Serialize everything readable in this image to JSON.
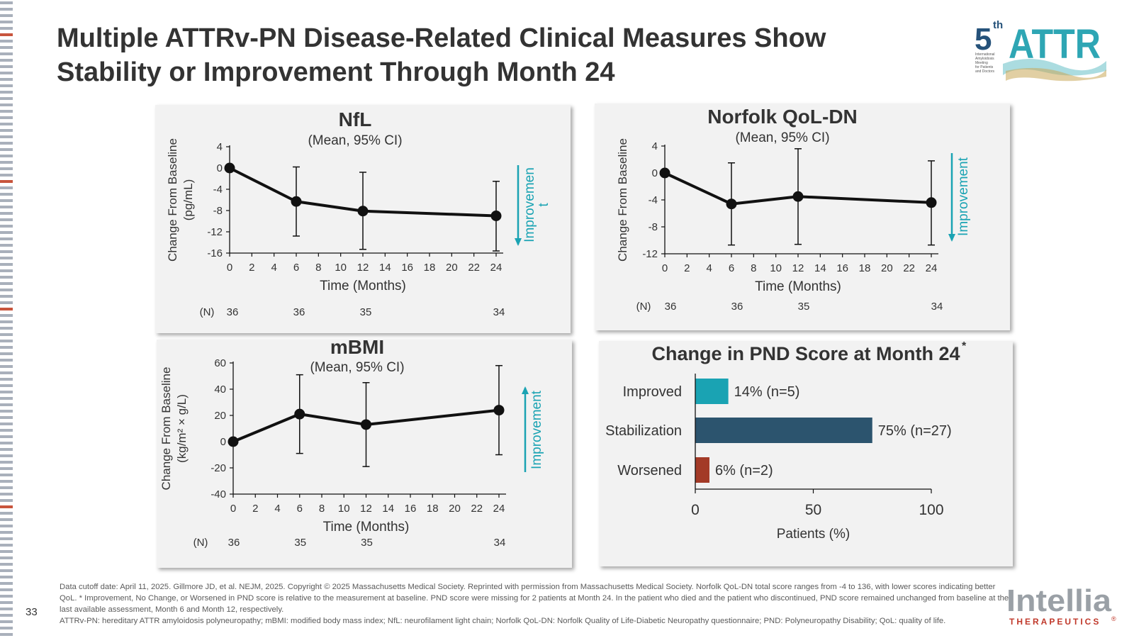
{
  "slide": {
    "title": "Multiple ATTRv-PN Disease-Related Clinical Measures Show Stability or Improvement Through Month 24",
    "page_number": "33"
  },
  "logo_attr": {
    "edition": "5",
    "edition_suffix": "th",
    "name": "ATTR",
    "lines": [
      "International",
      "Amyloidosis",
      "Meeting",
      "for Patients",
      "and Doctors"
    ],
    "colors": {
      "navy": "#25527a",
      "teal": "#2ea6b4"
    }
  },
  "logo_intellia": {
    "name": "Intellia",
    "tagline": "THERAPEUTICS",
    "mark": "®",
    "colors": {
      "gray": "#9aa0a6",
      "red": "#c0392b"
    }
  },
  "footnote": {
    "line1": "Data cutoff date: April 11, 2025. Gillmore JD, et al. NEJM, 2025. Copyright © 2025 Massachusetts Medical Society. Reprinted with permission from Massachusetts Medical Society. Norfolk QoL-DN total score ranges from -4 to 136, with lower scores indicating better QoL. * Improvement, No Change, or Worsened in PND score is relative to the measurement at baseline. PND score were missing for 2 patients at Month 24. In the patient who died and the patient who discontinued, PND score remained unchanged from baseline at the last available assessment, Month 6 and Month 12, respectively.",
    "line2": "ATTRv-PN: hereditary ATTR amyloidosis polyneuropathy; mBMI: modified body mass index; NfL: neurofilament light chain; Norfolk QoL-DN: Norfolk Quality of Life-Diabetic Neuropathy questionnaire; PND: Polyneuropathy Disability; QoL: quality of life."
  },
  "colors": {
    "line": "#111111",
    "teal": "#1aa3b3",
    "navy": "#2c546e",
    "red": "#a33a27",
    "panel": "#f2f2f2"
  },
  "chart_data": [
    {
      "type": "line",
      "title": "NfL",
      "subtitle": "(Mean, 95% CI)",
      "xlabel": "Time (Months)",
      "ylabel": [
        "Change From Baseline",
        "(pg/mL)"
      ],
      "x_ticks": [
        0,
        2,
        4,
        6,
        8,
        10,
        12,
        14,
        16,
        18,
        20,
        22,
        24
      ],
      "y_ticks": [
        4,
        0,
        -4,
        -8,
        -12,
        -16
      ],
      "ylim": [
        -16,
        4
      ],
      "xlim": [
        0,
        24
      ],
      "x": [
        0,
        6,
        12,
        24
      ],
      "y": [
        0,
        -6.3,
        -8.1,
        -9.0
      ],
      "ci_low": [
        0,
        -12.8,
        -15.3,
        -15.6
      ],
      "ci_high": [
        0,
        0.2,
        -0.8,
        -2.5
      ],
      "n_label": "(N)",
      "n": [
        "36",
        "36",
        "35",
        "34"
      ],
      "arrow_direction": "down",
      "arrow_label": [
        "Improvemen",
        "t"
      ]
    },
    {
      "type": "line",
      "title": "Norfolk QoL-DN",
      "subtitle": "(Mean, 95% CI)",
      "xlabel": "Time (Months)",
      "ylabel": [
        "Change From Baseline"
      ],
      "x_ticks": [
        0,
        2,
        4,
        6,
        8,
        10,
        12,
        14,
        16,
        18,
        20,
        22,
        24
      ],
      "y_ticks": [
        4,
        0,
        -4,
        -8,
        -12
      ],
      "ylim": [
        -12,
        4
      ],
      "xlim": [
        0,
        24
      ],
      "x": [
        0,
        6,
        12,
        24
      ],
      "y": [
        0,
        -4.6,
        -3.5,
        -4.4
      ],
      "ci_low": [
        0,
        -10.7,
        -10.6,
        -10.7
      ],
      "ci_high": [
        0,
        1.5,
        3.6,
        1.8
      ],
      "n_label": "(N)",
      "n": [
        "36",
        "36",
        "35",
        "34"
      ],
      "arrow_direction": "down",
      "arrow_label": [
        "Improvement"
      ]
    },
    {
      "type": "line",
      "title": "mBMI",
      "subtitle": "(Mean, 95% CI)",
      "xlabel": "Time (Months)",
      "ylabel": [
        "Change From Baseline",
        "(kg/m² × g/L)"
      ],
      "x_ticks": [
        0,
        2,
        4,
        6,
        8,
        10,
        12,
        14,
        16,
        18,
        20,
        22,
        24
      ],
      "y_ticks": [
        60,
        40,
        20,
        0,
        -20,
        -40
      ],
      "ylim": [
        -40,
        60
      ],
      "xlim": [
        0,
        24
      ],
      "x": [
        0,
        6,
        12,
        24
      ],
      "y": [
        0,
        21,
        13,
        24
      ],
      "ci_low": [
        0,
        -9,
        -19,
        -10
      ],
      "ci_high": [
        0,
        51,
        45,
        58
      ],
      "n_label": "(N)",
      "n": [
        "36",
        "35",
        "35",
        "34"
      ],
      "arrow_direction": "up",
      "arrow_label": [
        "Improvement"
      ]
    },
    {
      "type": "bar",
      "orientation": "horizontal",
      "title": "Change in PND Score at Month 24",
      "title_mark": "*",
      "categories": [
        "Improved",
        "Stabilization",
        "Worsened"
      ],
      "values": [
        14,
        75,
        6
      ],
      "labels": [
        "14% (n=5)",
        "75% (n=27)",
        "6% (n=2)"
      ],
      "colors": [
        "#1aa3b3",
        "#2c546e",
        "#a33a27"
      ],
      "xlabel": "Patients (%)",
      "x_ticks": [
        0,
        50,
        100
      ],
      "xlim": [
        0,
        100
      ]
    }
  ]
}
